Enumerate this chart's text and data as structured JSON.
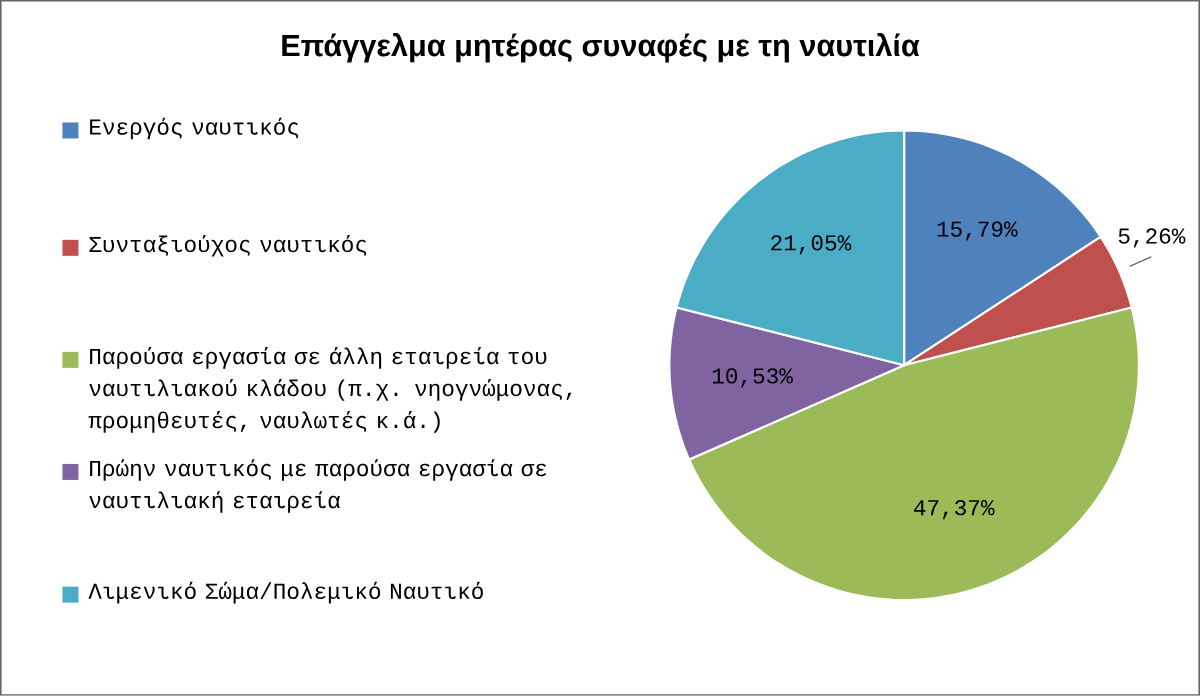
{
  "chart_data": {
    "type": "pie",
    "title": "Επάγγελμα μητέρας συναφές με τη ναυτιλία",
    "categories": [
      "Ενεργός ναυτικός",
      "Συνταξιούχος ναυτικός",
      "Παρούσα εργασία σε άλλη εταιρεία του ναυτιλιακού κλάδου (π.χ. νηογνώμονας, προμηθευτές, ναυλωτές κ.ά.)",
      "Πρώην ναυτικός με παρούσα εργασία σε ναυτιλιακή εταιρεία",
      "Λιμενικό Σώμα/Πολεμικό Ναυτικό"
    ],
    "values": [
      15.79,
      5.26,
      47.37,
      10.53,
      21.05
    ],
    "value_labels": [
      "15,79%",
      "5,26%",
      "47,37%",
      "10,53%",
      "21,05%"
    ],
    "colors": [
      "#4f81bd",
      "#c0504d",
      "#9bbb59",
      "#8064a2",
      "#4bacc6"
    ],
    "legend": "left"
  }
}
